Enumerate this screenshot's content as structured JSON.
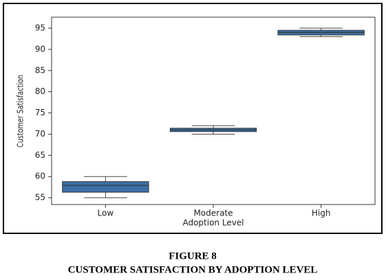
{
  "chart_data": {
    "type": "box",
    "x_label": "Adoption Level",
    "y_label": "Customer Satisfaction",
    "categories": [
      "Low",
      "Moderate",
      "High"
    ],
    "color": "#3b70a5",
    "boxes": [
      {
        "low": 55,
        "q1": 56.3,
        "median": 57.9,
        "q3": 58.8,
        "high": 60
      },
      {
        "low": 70,
        "q1": 70.6,
        "median": 71,
        "q3": 71.4,
        "high": 72
      },
      {
        "low": 93,
        "q1": 93.4,
        "median": 94,
        "q3": 94.5,
        "high": 95
      }
    ],
    "ylim": [
      53.4,
      97.6
    ],
    "yticks": [
      55,
      60,
      65,
      70,
      75,
      80,
      85,
      90,
      95
    ]
  },
  "caption": {
    "figure": "FIGURE 8",
    "title": "CUSTOMER SATISFACTION BY ADOPTION LEVEL"
  }
}
